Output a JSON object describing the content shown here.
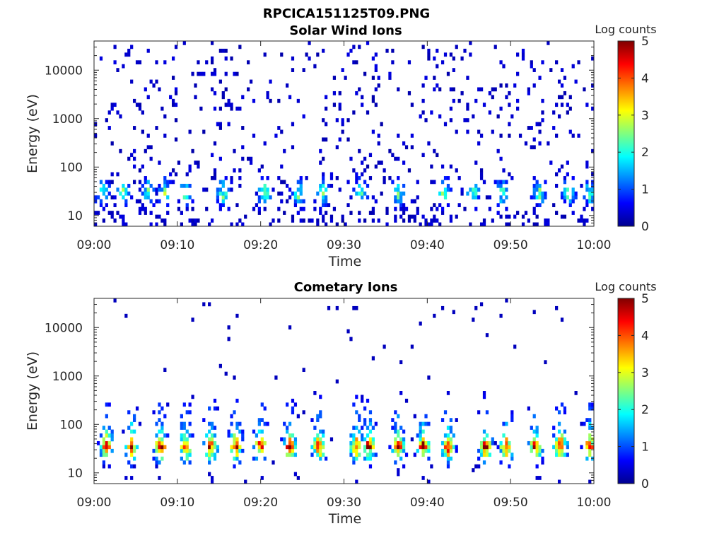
{
  "figure": {
    "title": "RPCICA151125T09.PNG"
  },
  "colors": {
    "colormap": "jet",
    "axis": "#262626",
    "background": "#ffffff"
  },
  "chart_data": [
    {
      "type": "heatmap",
      "title": "Solar Wind Ions",
      "xlabel": "Time",
      "ylabel": "Energy (eV)",
      "x_ticks": [
        "09:00",
        "09:10",
        "09:20",
        "09:30",
        "09:40",
        "09:50",
        "10:00"
      ],
      "xlim": [
        "09:00",
        "10:00"
      ],
      "y_scale": "log",
      "y_ticks": [
        "10",
        "100",
        "1000",
        "10000"
      ],
      "ylim": [
        6,
        40000
      ],
      "colorbar": {
        "label": "Log counts",
        "ticks": [
          "0",
          "1",
          "2",
          "3",
          "4",
          "5"
        ],
        "range": [
          0,
          5
        ]
      },
      "bursts_minutes": [
        1,
        3.5,
        6.5,
        8.5,
        11,
        15.5,
        20.5,
        24.5,
        27.5,
        32,
        36.5,
        42,
        45.5,
        49,
        53.5,
        57,
        59.5
      ],
      "peak_energy_eV": 30,
      "peak_log_counts": 2.5,
      "background_log_counts": 0.2
    },
    {
      "type": "heatmap",
      "title": "Cometary Ions",
      "xlabel": "Time",
      "ylabel": "Energy (eV)",
      "x_ticks": [
        "09:00",
        "09:10",
        "09:20",
        "09:30",
        "09:40",
        "09:50",
        "10:00"
      ],
      "xlim": [
        "09:00",
        "10:00"
      ],
      "y_scale": "log",
      "y_ticks": [
        "10",
        "100",
        "1000",
        "10000"
      ],
      "ylim": [
        6,
        40000
      ],
      "colorbar": {
        "label": "Log counts",
        "ticks": [
          "0",
          "1",
          "2",
          "3",
          "4",
          "5"
        ],
        "range": [
          0,
          5
        ]
      },
      "bursts_minutes": [
        1.5,
        4.5,
        8,
        11,
        14,
        17,
        20,
        23.5,
        27,
        31.5,
        33,
        36.5,
        39.5,
        42.5,
        47,
        49.5,
        53,
        56,
        59.5
      ],
      "peak_energy_eV": 30,
      "peak_log_counts": 3.8,
      "background_log_counts": 0.1
    }
  ]
}
